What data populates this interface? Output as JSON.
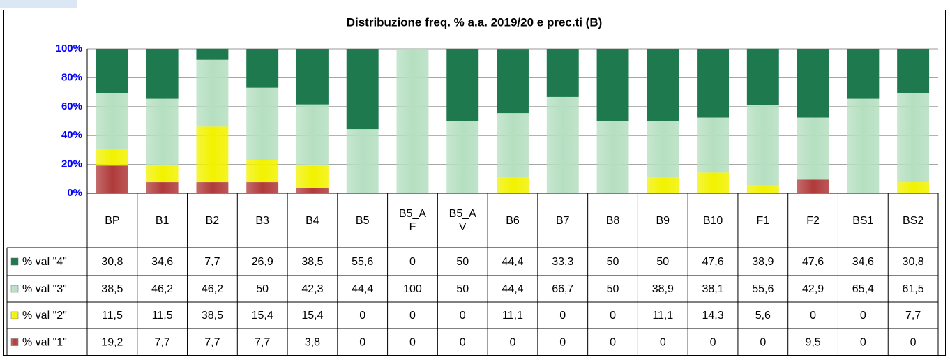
{
  "chart_data": {
    "type": "stacked_bar",
    "title": "Distribuzione freq. % a.a. 2019/20 e prec.ti (B)",
    "categories": [
      "BP",
      "B1",
      "B2",
      "B3",
      "B4",
      "B5",
      "B5_AF",
      "B5_AV",
      "B6",
      "B7",
      "B8",
      "B9",
      "B10",
      "F1",
      "F2",
      "BS1",
      "BS2"
    ],
    "series": [
      {
        "name": "% val \"1\"",
        "color": "#b03a3a",
        "values": [
          19.2,
          7.7,
          7.7,
          7.7,
          3.8,
          0,
          0,
          0,
          0,
          0,
          0,
          0,
          0,
          0,
          9.5,
          0,
          0
        ],
        "value_labels": [
          "19,2",
          "7,7",
          "7,7",
          "7,7",
          "3,8",
          "0",
          "0",
          "0",
          "0",
          "0",
          "0",
          "0",
          "0",
          "0",
          "9,5",
          "0",
          "0"
        ]
      },
      {
        "name": "% val \"2\"",
        "color": "#f2f200",
        "values": [
          11.5,
          11.5,
          38.5,
          15.4,
          15.4,
          0,
          0,
          0,
          11.1,
          0,
          0,
          11.1,
          14.3,
          5.6,
          0,
          0,
          7.7
        ],
        "value_labels": [
          "11,5",
          "11,5",
          "38,5",
          "15,4",
          "15,4",
          "0",
          "0",
          "0",
          "11,1",
          "0",
          "0",
          "11,1",
          "14,3",
          "5,6",
          "0",
          "0",
          "7,7"
        ]
      },
      {
        "name": "% val \"3\"",
        "color": "#b5dfc0",
        "values": [
          38.5,
          46.2,
          46.2,
          50,
          42.3,
          44.4,
          100,
          50,
          44.4,
          66.7,
          50,
          38.9,
          38.1,
          55.6,
          42.9,
          65.4,
          61.5
        ],
        "value_labels": [
          "38,5",
          "46,2",
          "46,2",
          "50",
          "42,3",
          "44,4",
          "100",
          "50",
          "44,4",
          "66,7",
          "50",
          "38,9",
          "38,1",
          "55,6",
          "42,9",
          "65,4",
          "61,5"
        ]
      },
      {
        "name": "% val \"4\"",
        "color": "#1e7a4e",
        "values": [
          30.8,
          34.6,
          7.7,
          26.9,
          38.5,
          55.6,
          0,
          50,
          44.4,
          33.3,
          50,
          50,
          47.6,
          38.9,
          47.6,
          34.6,
          30.8
        ],
        "value_labels": [
          "30,8",
          "34,6",
          "7,7",
          "26,9",
          "38,5",
          "55,6",
          "0",
          "50",
          "44,4",
          "33,3",
          "50",
          "50",
          "47,6",
          "38,9",
          "47,6",
          "34,6",
          "30,8"
        ]
      }
    ],
    "ylim": [
      0,
      100
    ],
    "yticks": [
      {
        "value": 0,
        "label": "0%"
      },
      {
        "value": 20,
        "label": "20%"
      },
      {
        "value": 40,
        "label": "40%"
      },
      {
        "value": 60,
        "label": "60%"
      },
      {
        "value": 80,
        "label": "80%"
      },
      {
        "value": 100,
        "label": "100%"
      }
    ],
    "grid": true
  }
}
